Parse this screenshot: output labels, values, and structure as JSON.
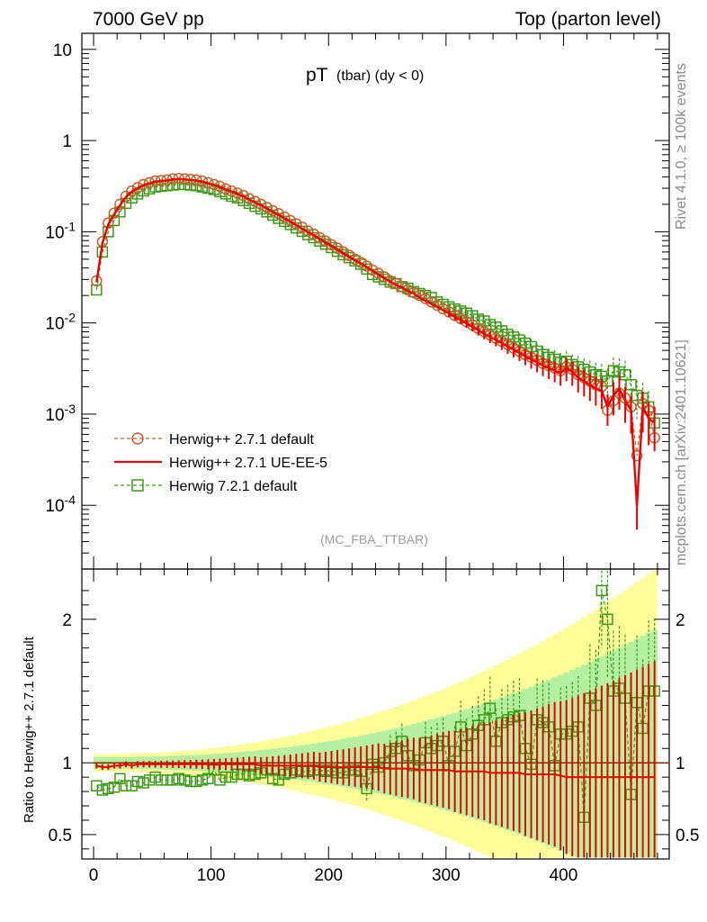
{
  "header": {
    "left": "7000 GeV pp",
    "right": "Top (parton level)"
  },
  "side_labels": {
    "rivet": "Rivet 4.1.0, ≥ 100k events",
    "mcplots": "mcplots.cern.ch [arXiv:2401.10621]"
  },
  "chart_data": {
    "type": "line",
    "title_main": "pT",
    "title_sub": "(tbar) (dy < 0)",
    "analysis_label": "(MC_FBA_TTBAR)",
    "xlabel": "",
    "ylabel": "",
    "xlim": [
      -10,
      490
    ],
    "ylim": [
      2e-05,
      15
    ],
    "yscale": "log",
    "x_ticks": [
      "0",
      "100",
      "200",
      "300",
      "400"
    ],
    "y_ticks": [
      "10",
      "1",
      "10^-1",
      "10^-2",
      "10^-3",
      "10^-4"
    ],
    "legend": [
      {
        "label": "Herwig++ 2.7.1 default",
        "color": "#c0622b",
        "style": "dashed-circle"
      },
      {
        "label": "Herwig++ 2.7.1 UE-EE-5",
        "color": "#ee0000",
        "style": "solid"
      },
      {
        "label": "Herwig 7.2.1 default",
        "color": "#3c9a16",
        "style": "dashed-square"
      }
    ],
    "series": [
      {
        "name": "Herwig++ 2.7.1 default",
        "x": [
          2.5,
          7.5,
          12.5,
          17.5,
          22.5,
          27.5,
          32.5,
          37.5,
          42.5,
          47.5,
          52.5,
          57.5,
          62.5,
          67.5,
          72.5,
          77.5,
          82.5,
          87.5,
          92.5,
          97.5,
          102.5,
          107.5,
          112.5,
          117.5,
          122.5,
          127.5,
          132.5,
          137.5,
          142.5,
          147.5,
          152.5,
          157.5,
          162.5,
          167.5,
          172.5,
          177.5,
          182.5,
          187.5,
          192.5,
          197.5,
          202.5,
          207.5,
          212.5,
          217.5,
          222.5,
          227.5,
          232.5,
          237.5,
          242.5,
          247.5,
          252.5,
          257.5,
          262.5,
          267.5,
          272.5,
          277.5,
          282.5,
          287.5,
          292.5,
          297.5,
          302.5,
          307.5,
          312.5,
          317.5,
          322.5,
          327.5,
          332.5,
          337.5,
          342.5,
          347.5,
          352.5,
          357.5,
          362.5,
          367.5,
          372.5,
          377.5,
          382.5,
          387.5,
          392.5,
          397.5,
          402.5,
          407.5,
          412.5,
          417.5,
          422.5,
          427.5,
          432.5,
          437.5,
          442.5,
          447.5,
          452.5,
          457.5,
          462.5,
          467.5,
          472.5,
          477.5
        ],
        "values": [
          0.029,
          0.078,
          0.125,
          0.16,
          0.2,
          0.245,
          0.28,
          0.305,
          0.33,
          0.345,
          0.36,
          0.365,
          0.37,
          0.38,
          0.385,
          0.38,
          0.375,
          0.37,
          0.36,
          0.345,
          0.33,
          0.315,
          0.295,
          0.28,
          0.265,
          0.25,
          0.23,
          0.215,
          0.2,
          0.185,
          0.17,
          0.158,
          0.145,
          0.133,
          0.122,
          0.112,
          0.102,
          0.094,
          0.086,
          0.079,
          0.072,
          0.066,
          0.06,
          0.055,
          0.05,
          0.046,
          0.042,
          0.038,
          0.035,
          0.032,
          0.029,
          0.027,
          0.025,
          0.023,
          0.0215,
          0.02,
          0.0185,
          0.017,
          0.0156,
          0.0143,
          0.0132,
          0.0121,
          0.0112,
          0.0103,
          0.0095,
          0.0087,
          0.008,
          0.0074,
          0.0068,
          0.0063,
          0.0058,
          0.0053,
          0.0049,
          0.0045,
          0.0042,
          0.0039,
          0.0036,
          0.0034,
          0.0032,
          0.003,
          0.0033,
          0.0031,
          0.0027,
          0.0025,
          0.0023,
          0.0021,
          0.002,
          0.0011,
          0.0014,
          0.0017,
          0.0015,
          0.0012,
          0.00035,
          0.0013,
          0.0011,
          0.00055
        ]
      },
      {
        "name": "Herwig++ 2.7.1 UE-EE-5",
        "x": [
          2.5,
          7.5,
          12.5,
          17.5,
          22.5,
          27.5,
          32.5,
          37.5,
          42.5,
          47.5,
          52.5,
          57.5,
          62.5,
          67.5,
          72.5,
          77.5,
          82.5,
          87.5,
          92.5,
          97.5,
          102.5,
          107.5,
          112.5,
          117.5,
          122.5,
          127.5,
          132.5,
          137.5,
          142.5,
          147.5,
          152.5,
          157.5,
          162.5,
          167.5,
          172.5,
          177.5,
          182.5,
          187.5,
          192.5,
          197.5,
          202.5,
          207.5,
          212.5,
          217.5,
          222.5,
          227.5,
          232.5,
          237.5,
          242.5,
          247.5,
          252.5,
          257.5,
          262.5,
          267.5,
          272.5,
          277.5,
          282.5,
          287.5,
          292.5,
          297.5,
          302.5,
          307.5,
          312.5,
          317.5,
          322.5,
          327.5,
          332.5,
          337.5,
          342.5,
          347.5,
          352.5,
          357.5,
          362.5,
          367.5,
          372.5,
          377.5,
          382.5,
          387.5,
          392.5,
          397.5,
          402.5,
          407.5,
          412.5,
          417.5,
          422.5,
          427.5,
          432.5,
          437.5,
          442.5,
          447.5,
          452.5,
          457.5,
          462.5,
          467.5,
          472.5,
          477.5
        ],
        "values": [
          0.028,
          0.075,
          0.12,
          0.155,
          0.195,
          0.24,
          0.275,
          0.3,
          0.325,
          0.34,
          0.355,
          0.36,
          0.365,
          0.375,
          0.38,
          0.375,
          0.37,
          0.365,
          0.355,
          0.34,
          0.325,
          0.31,
          0.29,
          0.275,
          0.26,
          0.245,
          0.225,
          0.21,
          0.195,
          0.18,
          0.165,
          0.153,
          0.14,
          0.129,
          0.118,
          0.108,
          0.099,
          0.091,
          0.083,
          0.076,
          0.07,
          0.064,
          0.058,
          0.053,
          0.049,
          0.045,
          0.041,
          0.037,
          0.034,
          0.031,
          0.0285,
          0.026,
          0.0245,
          0.0225,
          0.021,
          0.019,
          0.0175,
          0.0162,
          0.015,
          0.0138,
          0.0127,
          0.0116,
          0.0107,
          0.0099,
          0.0091,
          0.0083,
          0.0076,
          0.007,
          0.0065,
          0.006,
          0.0055,
          0.0051,
          0.0047,
          0.0043,
          0.004,
          0.0037,
          0.0034,
          0.0032,
          0.003,
          0.0028,
          0.0032,
          0.0029,
          0.0025,
          0.0023,
          0.0021,
          0.0019,
          0.0018,
          0.0012,
          0.0016,
          0.0019,
          0.0014,
          0.0011,
          0.0001,
          0.0012,
          0.0009,
          0.0008
        ]
      },
      {
        "name": "Herwig 7.2.1 default",
        "x": [
          2.5,
          7.5,
          12.5,
          17.5,
          22.5,
          27.5,
          32.5,
          37.5,
          42.5,
          47.5,
          52.5,
          57.5,
          62.5,
          67.5,
          72.5,
          77.5,
          82.5,
          87.5,
          92.5,
          97.5,
          102.5,
          107.5,
          112.5,
          117.5,
          122.5,
          127.5,
          132.5,
          137.5,
          142.5,
          147.5,
          152.5,
          157.5,
          162.5,
          167.5,
          172.5,
          177.5,
          182.5,
          187.5,
          192.5,
          197.5,
          202.5,
          207.5,
          212.5,
          217.5,
          222.5,
          227.5,
          232.5,
          237.5,
          242.5,
          247.5,
          252.5,
          257.5,
          262.5,
          267.5,
          272.5,
          277.5,
          282.5,
          287.5,
          292.5,
          297.5,
          302.5,
          307.5,
          312.5,
          317.5,
          322.5,
          327.5,
          332.5,
          337.5,
          342.5,
          347.5,
          352.5,
          357.5,
          362.5,
          367.5,
          372.5,
          377.5,
          382.5,
          387.5,
          392.5,
          397.5,
          402.5,
          407.5,
          412.5,
          417.5,
          422.5,
          427.5,
          432.5,
          437.5,
          442.5,
          447.5,
          452.5,
          457.5,
          462.5,
          467.5,
          472.5,
          477.5
        ],
        "values": [
          0.023,
          0.06,
          0.1,
          0.133,
          0.165,
          0.205,
          0.235,
          0.26,
          0.28,
          0.295,
          0.31,
          0.315,
          0.32,
          0.325,
          0.33,
          0.33,
          0.325,
          0.32,
          0.31,
          0.3,
          0.29,
          0.275,
          0.26,
          0.245,
          0.235,
          0.22,
          0.205,
          0.19,
          0.178,
          0.165,
          0.152,
          0.14,
          0.13,
          0.12,
          0.11,
          0.101,
          0.093,
          0.086,
          0.079,
          0.073,
          0.067,
          0.061,
          0.056,
          0.052,
          0.048,
          0.044,
          0.039,
          0.034,
          0.032,
          0.03,
          0.028,
          0.027,
          0.025,
          0.024,
          0.022,
          0.021,
          0.02,
          0.019,
          0.017,
          0.016,
          0.015,
          0.0142,
          0.0135,
          0.0128,
          0.012,
          0.011,
          0.0105,
          0.0096,
          0.009,
          0.0082,
          0.0075,
          0.007,
          0.0065,
          0.006,
          0.0055,
          0.0049,
          0.0045,
          0.0042,
          0.004,
          0.0037,
          0.0038,
          0.0035,
          0.0033,
          0.0031,
          0.0029,
          0.0027,
          0.0026,
          0.0023,
          0.003,
          0.0029,
          0.0027,
          0.0021,
          0.0016,
          0.0015,
          0.0012,
          0.0008
        ]
      }
    ],
    "ratio": {
      "ylabel": "Ratio to Herwig++ 2.7.1 default",
      "ylim": [
        0.33,
        2.35
      ],
      "y_ticks": [
        "0.5",
        "1",
        "2"
      ],
      "x": [
        2.5,
        7.5,
        12.5,
        17.5,
        22.5,
        27.5,
        32.5,
        37.5,
        42.5,
        47.5,
        52.5,
        57.5,
        62.5,
        67.5,
        72.5,
        77.5,
        82.5,
        87.5,
        92.5,
        97.5,
        102.5,
        107.5,
        112.5,
        117.5,
        122.5,
        127.5,
        132.5,
        137.5,
        142.5,
        147.5,
        152.5,
        157.5,
        162.5,
        167.5,
        172.5,
        177.5,
        182.5,
        187.5,
        192.5,
        197.5,
        202.5,
        207.5,
        212.5,
        217.5,
        222.5,
        227.5,
        232.5,
        237.5,
        242.5,
        247.5,
        252.5,
        257.5,
        262.5,
        267.5,
        272.5,
        277.5,
        282.5,
        287.5,
        292.5,
        297.5,
        302.5,
        307.5,
        312.5,
        317.5,
        322.5,
        327.5,
        332.5,
        337.5,
        342.5,
        347.5,
        352.5,
        357.5,
        362.5,
        367.5,
        372.5,
        377.5,
        382.5,
        387.5,
        392.5,
        397.5,
        402.5,
        407.5,
        412.5,
        417.5,
        422.5,
        427.5,
        432.5,
        437.5,
        442.5,
        447.5,
        452.5,
        457.5,
        462.5,
        467.5,
        472.5,
        477.5
      ],
      "series": [
        {
          "name": "Herwig++ 2.7.1 UE-EE-5",
          "values": [
            0.98,
            0.97,
            0.97,
            0.98,
            0.98,
            0.99,
            0.98,
            0.99,
            0.99,
            0.99,
            0.99,
            0.99,
            0.99,
            0.99,
            0.99,
            0.99,
            0.99,
            0.99,
            0.99,
            0.99,
            0.99,
            0.99,
            0.99,
            0.99,
            0.99,
            0.99,
            0.99,
            0.99,
            0.98,
            0.98,
            0.98,
            0.98,
            0.98,
            0.98,
            0.98,
            0.98,
            0.98,
            0.98,
            0.97,
            0.97,
            0.97,
            0.97,
            0.97,
            0.97,
            0.97,
            0.97,
            0.97,
            0.97,
            0.97,
            0.96,
            0.96,
            0.96,
            0.96,
            0.96,
            0.96,
            0.95,
            0.95,
            0.95,
            0.95,
            0.95,
            0.95,
            0.94,
            0.94,
            0.94,
            0.94,
            0.94,
            0.94,
            0.93,
            0.93,
            0.93,
            0.93,
            0.93,
            0.93,
            0.92,
            0.92,
            0.92,
            0.92,
            0.92,
            0.92,
            0.91,
            0.9,
            0.9,
            0.9,
            0.9,
            0.9,
            0.9,
            0.9,
            0.9,
            0.9,
            0.9,
            0.9,
            0.9,
            0.9,
            0.9,
            0.9,
            0.9
          ]
        },
        {
          "name": "Herwig 7.2.1 default",
          "values": [
            0.84,
            0.81,
            0.82,
            0.83,
            0.89,
            0.84,
            0.84,
            0.87,
            0.86,
            0.88,
            0.9,
            0.88,
            0.88,
            0.88,
            0.89,
            0.88,
            0.87,
            0.87,
            0.88,
            0.89,
            0.95,
            0.88,
            0.9,
            0.9,
            0.92,
            0.92,
            0.91,
            0.92,
            0.93,
            0.95,
            0.89,
            0.88,
            0.92,
            0.93,
            0.95,
            0.94,
            0.94,
            0.95,
            0.95,
            0.94,
            0.95,
            0.93,
            0.93,
            0.95,
            0.95,
            0.94,
            0.82,
            0.99,
            0.97,
            1.0,
            1.08,
            1.1,
            1.15,
            1.05,
            0.98,
            1.02,
            1.14,
            1.1,
            1.12,
            1.15,
            0.98,
            1.08,
            1.25,
            1.12,
            1.2,
            1.26,
            1.3,
            1.38,
            1.15,
            1.28,
            1.3,
            1.32,
            1.33,
            1.1,
            0.99,
            1.3,
            1.28,
            1.25,
            0.98,
            1.2,
            1.2,
            1.22,
            1.25,
            0.62,
            1.45,
            1.4,
            2.2,
            2.0,
            1.5,
            1.52,
            1.45,
            0.78,
            1.42,
            1.24,
            1.5,
            1.5
          ]
        }
      ]
    }
  }
}
